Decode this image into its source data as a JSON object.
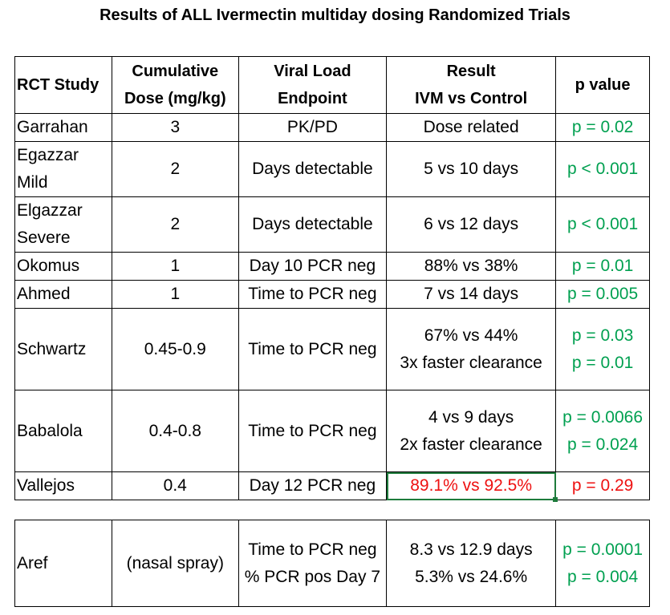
{
  "title": "Results of ALL Ivermectin multiday dosing Randomized Trials",
  "header": {
    "study": "RCT Study",
    "dose_line1": "Cumulative",
    "dose_line2": "Dose (mg/kg)",
    "endpoint_line1": "Viral Load",
    "endpoint_line2": "Endpoint",
    "result_line1": "Result",
    "result_line2": "IVM vs Control",
    "pvalue": "p value"
  },
  "rows": [
    {
      "study": [
        "Garrahan"
      ],
      "dose": "3",
      "endpoint": [
        "PK/PD"
      ],
      "result": [
        "Dose related"
      ],
      "p": [
        "p = 0.02"
      ],
      "pcolor": "green"
    },
    {
      "study": [
        "Egazzar",
        "Mild"
      ],
      "dose": "2",
      "endpoint": [
        "Days detectable"
      ],
      "result": [
        "5 vs 10 days"
      ],
      "p": [
        "p < 0.001"
      ],
      "pcolor": "green"
    },
    {
      "study": [
        "Elgazzar",
        "Severe"
      ],
      "dose": "2",
      "endpoint": [
        "Days detectable"
      ],
      "result": [
        "6 vs 12 days"
      ],
      "p": [
        "p < 0.001"
      ],
      "pcolor": "green"
    },
    {
      "study": [
        "Okomus"
      ],
      "dose": "1",
      "endpoint": [
        "Day 10 PCR neg"
      ],
      "result": [
        "88% vs 38%"
      ],
      "p": [
        "p = 0.01"
      ],
      "pcolor": "green"
    },
    {
      "study": [
        "Ahmed"
      ],
      "dose": "1",
      "endpoint": [
        "Time to PCR neg"
      ],
      "result": [
        "7 vs 14 days"
      ],
      "p": [
        "p = 0.005"
      ],
      "pcolor": "green"
    },
    {
      "study": [
        "Schwartz"
      ],
      "dose": "0.45-0.9",
      "endpoint": [
        "Time to PCR neg"
      ],
      "result": [
        "67% vs 44%",
        "3x faster clearance"
      ],
      "p": [
        "p = 0.03",
        "p = 0.01"
      ],
      "pcolor": "green"
    },
    {
      "study": [
        "Babalola"
      ],
      "dose": "0.4-0.8",
      "endpoint": [
        "Time to PCR neg"
      ],
      "result": [
        "4 vs 9 days",
        "2x faster clearance"
      ],
      "p": [
        "p = 0.0066",
        "p = 0.024"
      ],
      "pcolor": "green"
    },
    {
      "study": [
        "Vallejos"
      ],
      "dose": "0.4",
      "endpoint": [
        "Day 12 PCR neg"
      ],
      "result": [
        "89.1% vs 92.5%"
      ],
      "p": [
        "p = 0.29"
      ],
      "pcolor": "red"
    }
  ],
  "aref": {
    "study": "Aref",
    "dose": "(nasal spray)",
    "endpoint": [
      "Time to PCR neg",
      "% PCR pos Day 7"
    ],
    "result": [
      "8.3 vs 12.9 days",
      "5.3% vs 24.6%"
    ],
    "p": [
      "p = 0.0001",
      "p = 0.004"
    ]
  },
  "colors": {
    "green": "#00a050",
    "red": "#ee1111",
    "selection": "#1e7b3c"
  }
}
